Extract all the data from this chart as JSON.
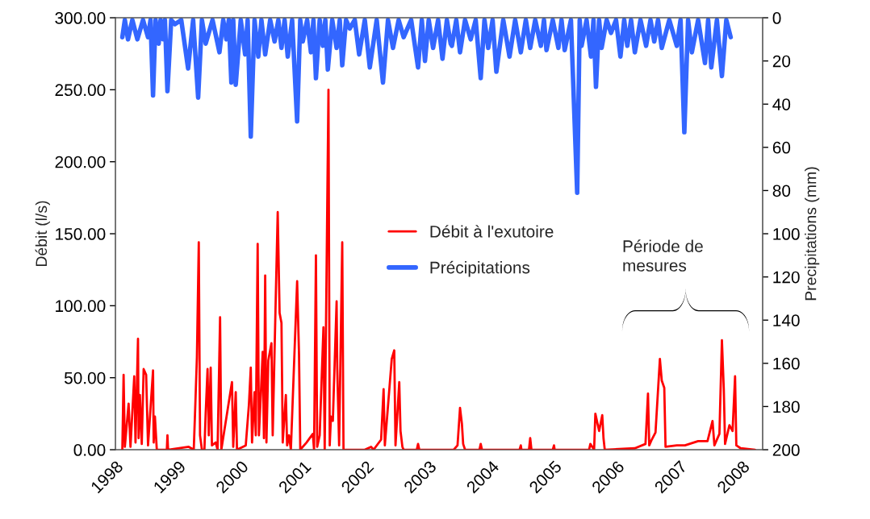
{
  "chart_data": {
    "type": "line",
    "ylabel": "Débit (l/s)",
    "y2label": "Precipitations (mm)",
    "xlim": [
      1998,
      2008.33
    ],
    "xticks": [
      1998,
      1999,
      2000,
      2001,
      2002,
      2003,
      2004,
      2005,
      2006,
      2007,
      2008
    ],
    "ylim": [
      0,
      300
    ],
    "yticks": [
      {
        "value": 0,
        "label": "0.00"
      },
      {
        "value": 50,
        "label": "50.00"
      },
      {
        "value": 100,
        "label": "100.00"
      },
      {
        "value": 150,
        "label": "150.00"
      },
      {
        "value": 200,
        "label": "200.00"
      },
      {
        "value": 250,
        "label": "250.00"
      },
      {
        "value": 300,
        "label": "300.00"
      }
    ],
    "y2lim": [
      200,
      0
    ],
    "y2ticks": [
      0,
      20,
      40,
      60,
      80,
      100,
      120,
      140,
      160,
      180,
      200
    ],
    "grid": false,
    "legend": "center",
    "marker": "none",
    "line_style": "solid",
    "annotations": [
      "Période de\nmesures"
    ],
    "series": [
      {
        "name": "Débit à l'exutoire",
        "color": "#ff0000",
        "axis": "y",
        "x": [
          1998.11,
          1998.13,
          1998.15,
          1998.21,
          1998.24,
          1998.3,
          1998.32,
          1998.36,
          1998.37,
          1998.39,
          1998.42,
          1998.45,
          1998.49,
          1998.52,
          1998.6,
          1998.61,
          1998.63,
          1998.66,
          1998.82,
          1998.83,
          1998.84,
          1999.17,
          1999.25,
          1999.27,
          1999.3,
          1999.33,
          1999.35,
          1999.38,
          1999.42,
          1999.44,
          1999.47,
          1999.49,
          1999.52,
          1999.54,
          1999.6,
          1999.63,
          1999.67,
          1999.69,
          1999.86,
          1999.88,
          1999.92,
          1999.94,
          2000.08,
          2000.13,
          2000.16,
          2000.18,
          2000.22,
          2000.24,
          2000.27,
          2000.29,
          2000.32,
          2000.35,
          2000.37,
          2000.39,
          2000.41,
          2000.44,
          2000.49,
          2000.51,
          2000.56,
          2000.59,
          2000.62,
          2000.65,
          2000.67,
          2000.72,
          2000.74,
          2000.77,
          2000.8,
          2000.9,
          2000.93,
          2000.95,
          2001.05,
          2001.15,
          2001.17,
          2001.2,
          2001.22,
          2001.26,
          2001.32,
          2001.34,
          2001.4,
          2001.42,
          2001.44,
          2001.47,
          2001.53,
          2001.54,
          2001.57,
          2001.62,
          2001.64,
          2001.98,
          2002.08,
          2002.12,
          2002.24,
          2002.28,
          2002.3,
          2002.41,
          2002.45,
          2002.47,
          2002.53,
          2002.55,
          2002.58,
          2002.6,
          2002.81,
          2002.83,
          2002.85,
          2003.4,
          2003.46,
          2003.5,
          2003.53,
          2003.55,
          2003.58,
          2003.81,
          2003.83,
          2003.85,
          2004.45,
          2004.47,
          2004.48,
          2004.6,
          2004.62,
          2004.64,
          2004.98,
          2005.0,
          2005.01,
          2005.56,
          2005.58,
          2005.64,
          2005.66,
          2005.72,
          2005.77,
          2005.79,
          2005.81,
          2006.29,
          2006.46,
          2006.5,
          2006.52,
          2006.56,
          2006.62,
          2006.69,
          2006.72,
          2006.76,
          2006.78,
          2006.96,
          2007.09,
          2007.3,
          2007.37,
          2007.45,
          2007.53,
          2007.56,
          2007.64,
          2007.68,
          2007.71,
          2007.73,
          2007.8,
          2007.85,
          2007.89,
          2007.91,
          2007.98,
          2008.21
        ],
        "values": [
          0,
          52,
          2,
          32,
          2,
          51,
          5,
          77,
          8,
          38,
          4,
          56,
          52,
          3,
          55,
          5,
          23,
          0,
          0,
          10,
          0,
          2,
          0,
          25,
          64,
          144,
          10,
          0,
          0,
          25,
          56,
          10,
          57,
          3,
          5,
          0,
          92,
          0,
          47,
          2,
          40,
          0,
          3,
          31,
          57,
          5,
          40,
          10,
          143,
          10,
          38,
          68,
          8,
          121,
          5,
          62,
          74,
          10,
          108,
          165,
          95,
          88,
          5,
          38,
          3,
          10,
          0,
          117,
          66,
          0,
          5,
          11,
          0,
          135,
          2,
          10,
          85,
          0,
          250,
          3,
          23,
          20,
          103,
          57,
          3,
          144,
          0,
          0,
          2,
          0,
          7,
          42,
          3,
          63,
          69,
          3,
          47,
          13,
          2,
          0,
          0,
          4,
          0,
          0,
          3,
          29,
          18,
          4,
          0,
          0,
          4,
          0,
          0,
          3,
          0,
          0,
          8,
          0,
          0,
          3,
          0,
          0,
          4,
          0,
          25,
          13,
          24,
          8,
          0,
          1,
          4,
          39,
          3,
          7,
          12,
          63,
          48,
          43,
          2,
          3,
          3,
          6,
          6,
          6,
          20,
          3,
          11,
          76,
          42,
          4,
          17,
          13,
          51,
          3,
          1,
          0
        ]
      },
      {
        "name": "Précipitations",
        "color": "#3366ff",
        "axis": "y2",
        "x": [
          1998.11,
          1998.15,
          1998.2,
          1998.27,
          1998.35,
          1998.44,
          1998.52,
          1998.56,
          1998.6,
          1998.64,
          1998.69,
          1998.72,
          1998.76,
          1998.79,
          1998.83,
          1998.89,
          1998.95,
          1999.05,
          1999.16,
          1999.24,
          1999.32,
          1999.38,
          1999.44,
          1999.55,
          1999.66,
          1999.72,
          1999.77,
          1999.81,
          1999.85,
          1999.88,
          1999.92,
          2000.0,
          2000.07,
          2000.11,
          2000.16,
          2000.22,
          2000.28,
          2000.33,
          2000.39,
          2000.47,
          2000.54,
          2000.6,
          2000.65,
          2000.7,
          2000.75,
          2000.82,
          2000.9,
          2000.95,
          2000.99,
          2001.06,
          2001.12,
          2001.16,
          2001.2,
          2001.26,
          2001.31,
          2001.35,
          2001.39,
          2001.46,
          2001.53,
          2001.58,
          2001.62,
          2001.68,
          2001.74,
          2001.82,
          2001.89,
          2001.98,
          2002.06,
          2002.17,
          2002.27,
          2002.35,
          2002.43,
          2002.52,
          2002.6,
          2002.72,
          2002.83,
          2002.89,
          2002.94,
          2003.0,
          2003.07,
          2003.15,
          2003.22,
          2003.29,
          2003.35,
          2003.37,
          2003.44,
          2003.5,
          2003.58,
          2003.67,
          2003.75,
          2003.83,
          2003.89,
          2003.95,
          2004.02,
          2004.08,
          2004.19,
          2004.29,
          2004.38,
          2004.47,
          2004.55,
          2004.62,
          2004.7,
          2004.79,
          2004.84,
          2004.88,
          2004.98,
          2005.07,
          2005.12,
          2005.17,
          2005.27,
          2005.37,
          2005.41,
          2005.44,
          2005.52,
          2005.59,
          2005.63,
          2005.67,
          2005.72,
          2005.76,
          2005.84,
          2005.91,
          2005.99,
          2006.06,
          2006.12,
          2006.17,
          2006.23,
          2006.29,
          2006.38,
          2006.47,
          2006.54,
          2006.6,
          2006.66,
          2006.72,
          2006.84,
          2006.96,
          2007.02,
          2007.08,
          2007.14,
          2007.2,
          2007.3,
          2007.41,
          2007.46,
          2007.51,
          2007.6,
          2007.68,
          2007.75,
          2007.82
        ],
        "values": [
          9,
          1,
          10,
          1,
          10,
          1,
          9,
          1,
          36,
          1,
          12,
          1,
          10,
          1,
          34,
          1,
          3,
          1,
          23.5,
          1,
          37,
          1,
          12,
          1,
          16,
          1,
          10,
          1,
          30,
          1,
          31,
          1,
          17,
          1,
          55,
          1,
          18,
          1,
          17,
          1,
          11,
          1,
          14,
          1,
          18,
          1,
          48,
          1,
          11,
          1,
          16,
          1,
          28,
          1,
          13,
          1,
          24,
          1,
          14,
          1,
          22,
          1,
          5,
          1,
          17,
          1,
          23,
          1,
          30,
          1,
          14,
          1,
          9,
          1,
          23,
          1,
          20,
          1,
          14,
          1,
          19,
          1,
          12,
          13,
          1,
          16,
          1,
          10,
          1,
          28,
          1,
          14,
          1,
          25,
          1,
          18,
          1,
          16,
          1,
          14,
          1,
          13,
          1,
          15,
          1,
          14,
          1,
          15,
          1,
          81,
          1,
          13,
          1,
          18,
          1,
          32,
          1,
          14,
          1,
          7,
          1,
          18,
          1,
          13,
          1,
          16,
          1,
          13,
          1,
          11,
          1,
          14,
          1,
          13,
          1,
          53,
          1,
          16,
          1,
          21,
          1,
          23,
          1,
          27,
          1,
          9
        ]
      }
    ]
  }
}
